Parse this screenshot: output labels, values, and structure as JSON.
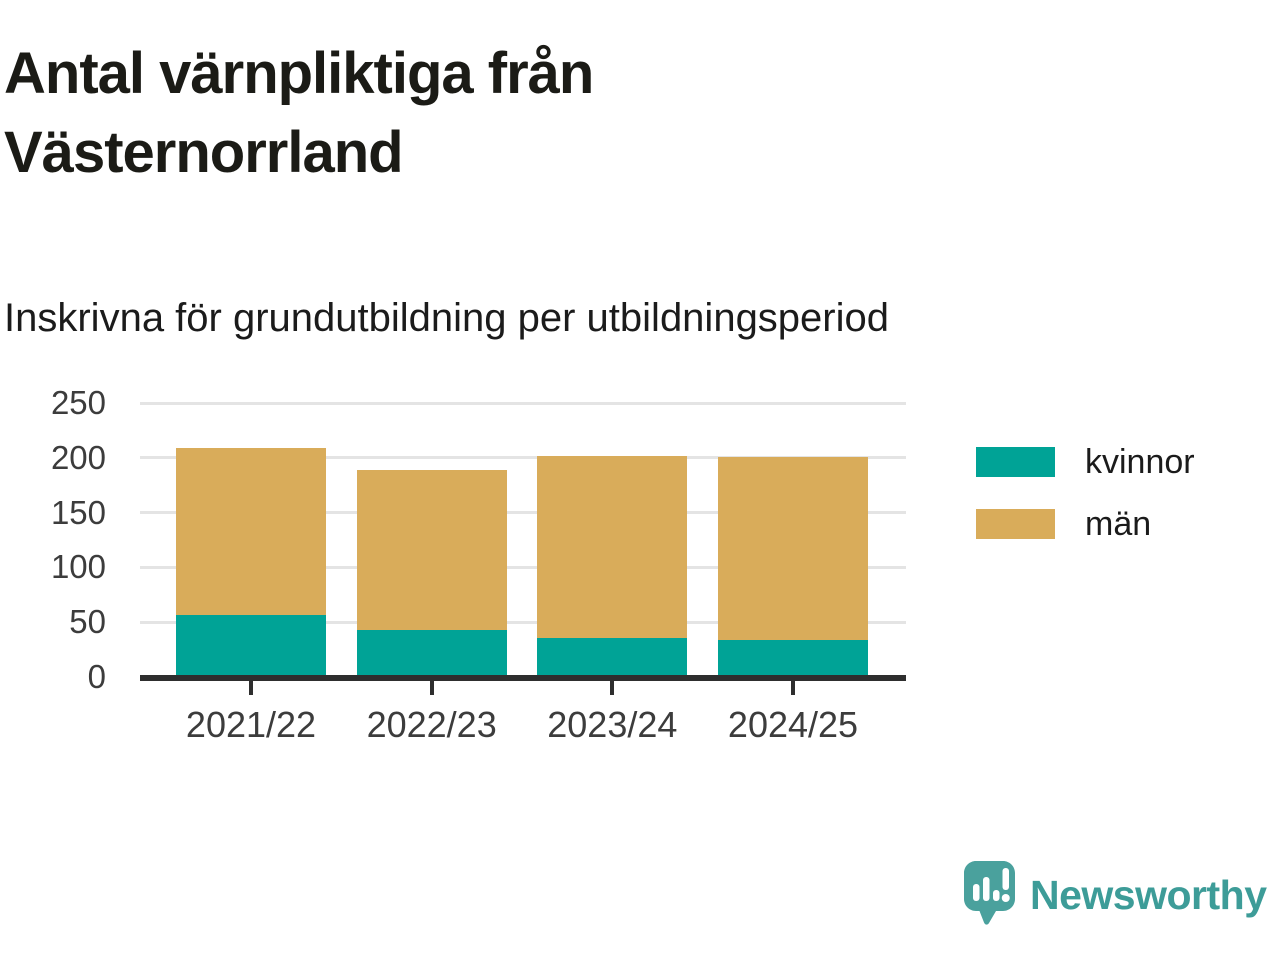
{
  "header": {
    "title": "Antal värnpliktiga från\nVästernorrland",
    "subtitle": "Inskrivna för grundutbildning per utbildningsperiod"
  },
  "chart_data": {
    "type": "bar",
    "stacked": true,
    "title": "Antal värnpliktiga från Västernorrland",
    "subtitle": "Inskrivna för grundutbildning per utbildningsperiod",
    "categories": [
      "2021/22",
      "2022/23",
      "2023/24",
      "2024/25"
    ],
    "series": [
      {
        "name": "kvinnor",
        "color": "#00A396",
        "values": [
          57,
          43,
          36,
          34
        ]
      },
      {
        "name": "män",
        "color": "#D9AC5A",
        "values": [
          152,
          146,
          166,
          167
        ]
      }
    ],
    "stacked_totals": [
      209,
      189,
      202,
      201
    ],
    "xlabel": "",
    "ylabel": "",
    "ylim": [
      0,
      250
    ],
    "yticks": [
      0,
      50,
      100,
      150,
      200,
      250
    ],
    "grid": true,
    "legend_position": "right",
    "grid_color": "#E4E4E4",
    "axis_color": "#2E2E2E",
    "tick_label_color": "#3C3C3C"
  },
  "branding": {
    "logo_text": "Newsworthy",
    "logo_color": "#3D9C98",
    "logo_icon": "speech-bubble-with-bar-chart-and-exclamation"
  }
}
